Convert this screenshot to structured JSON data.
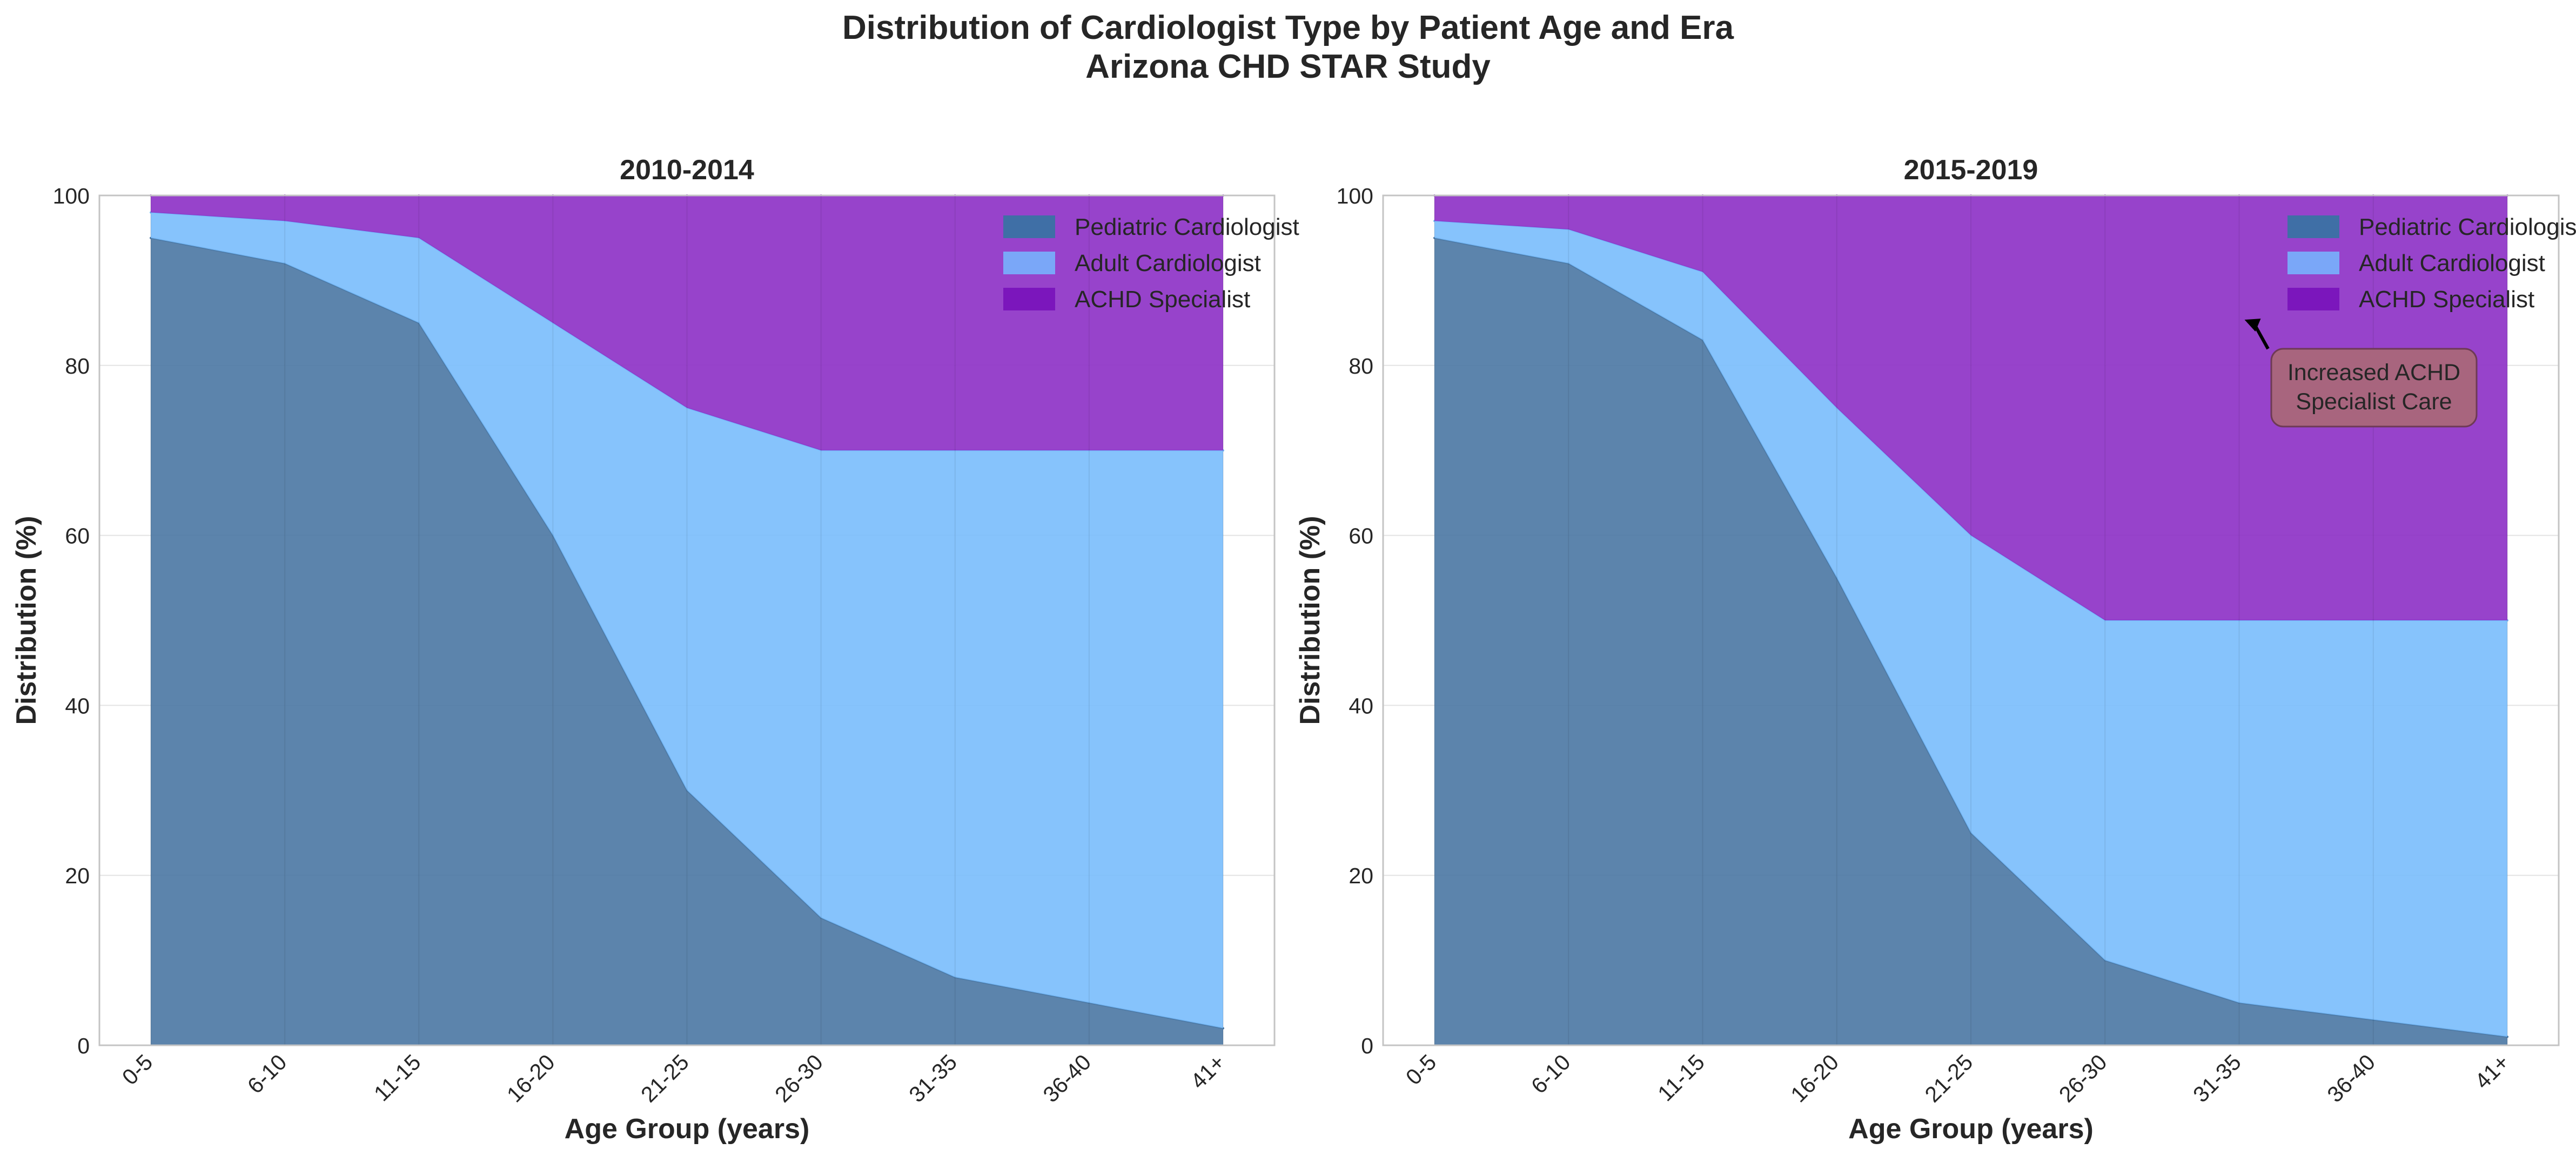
{
  "figure": {
    "title_line1": "Distribution of Cardiologist Type by Patient Age and Era",
    "title_line2": "Arizona CHD STAR Study"
  },
  "colors": {
    "pediatric": "#4a77a3",
    "adult": "#79bcfc",
    "achd": "#8c2fc5",
    "legend_pediatric": "#3f6fa6",
    "legend_adult": "#7aa7f8",
    "legend_achd": "#7b16bc",
    "annotation_box": "#a8657e",
    "grid": "#e3e3e3",
    "frame": "#c4c4c4"
  },
  "chart_data": [
    {
      "type": "area",
      "stacked": true,
      "title": "2010-2014",
      "xlabel": "Age Group (years)",
      "ylabel": "Distribution (%)",
      "ylim": [
        0,
        100
      ],
      "yticks": [
        0,
        20,
        40,
        60,
        80,
        100
      ],
      "grid": true,
      "legend_position": "top-right",
      "categories": [
        "0-5",
        "6-10",
        "11-15",
        "16-20",
        "21-25",
        "26-30",
        "31-35",
        "36-40",
        "41+"
      ],
      "series": [
        {
          "name": "Pediatric Cardiologist",
          "values": [
            95,
            92,
            85,
            60,
            30,
            15,
            8,
            5,
            2
          ]
        },
        {
          "name": "Adult Cardiologist",
          "values": [
            3,
            5,
            10,
            25,
            45,
            55,
            62,
            65,
            68
          ]
        },
        {
          "name": "ACHD Specialist",
          "values": [
            2,
            3,
            5,
            15,
            25,
            30,
            30,
            30,
            30
          ]
        }
      ]
    },
    {
      "type": "area",
      "stacked": true,
      "title": "2015-2019",
      "xlabel": "Age Group (years)",
      "ylabel": "Distribution (%)",
      "ylim": [
        0,
        100
      ],
      "yticks": [
        0,
        20,
        40,
        60,
        80,
        100
      ],
      "grid": true,
      "legend_position": "top-right",
      "categories": [
        "0-5",
        "6-10",
        "11-15",
        "16-20",
        "21-25",
        "26-30",
        "31-35",
        "36-40",
        "41+"
      ],
      "series": [
        {
          "name": "Pediatric Cardiologist",
          "values": [
            95,
            92,
            83,
            55,
            25,
            10,
            5,
            3,
            1
          ]
        },
        {
          "name": "Adult Cardiologist",
          "values": [
            2,
            4,
            8,
            20,
            35,
            40,
            45,
            47,
            49
          ]
        },
        {
          "name": "ACHD Specialist",
          "values": [
            3,
            4,
            9,
            25,
            40,
            50,
            50,
            50,
            50
          ]
        }
      ],
      "annotation": {
        "text_line1": "Increased ACHD",
        "text_line2": "Specialist Care",
        "points_to": {
          "x": "31-35",
          "y": 85
        }
      }
    }
  ]
}
